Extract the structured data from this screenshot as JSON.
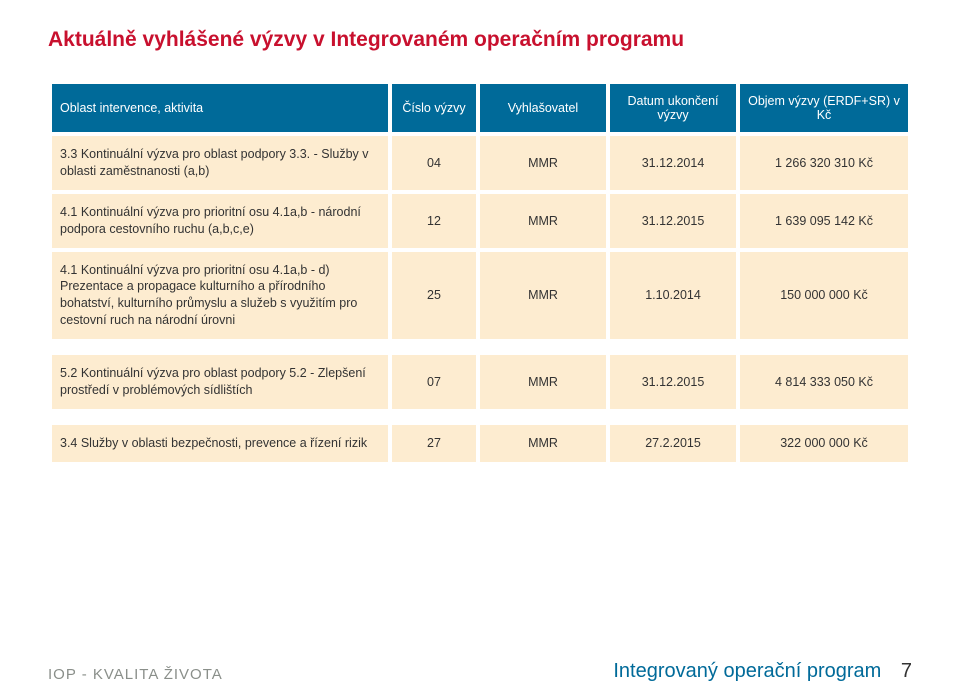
{
  "title": "Aktuálně vyhlášené výzvy v Integrovaném operačním programu",
  "headers": {
    "c1": "Oblast intervence, aktivita",
    "c2": "Číslo výzvy",
    "c3": "Vyhlašovatel",
    "c4": "Datum ukončení výzvy",
    "c5": "Objem výzvy (ERDF+SR) v Kč"
  },
  "rows": [
    {
      "c1": "3.3 Kontinuální výzva pro oblast podpory 3.3. - Služby v oblasti zaměstnanosti (a,b)",
      "c2": "04",
      "c3": "MMR",
      "c4": "31.12.2014",
      "c5": "1 266 320 310 Kč"
    },
    {
      "c1": "4.1 Kontinuální výzva pro prioritní osu 4.1a,b - národní podpora cestovního ruchu (a,b,c,e)",
      "c2": "12",
      "c3": "MMR",
      "c4": "31.12.2015",
      "c5": "1 639 095 142 Kč"
    },
    {
      "c1": "4.1 Kontinuální výzva pro prioritní osu 4.1a,b - d) Prezentace a propagace kulturního a přírodního bohatství, kulturního průmyslu a služeb s využitím pro cestovní ruch na národní úrovni",
      "c2": "25",
      "c3": "MMR",
      "c4": "1.10.2014",
      "c5": "150 000 000 Kč"
    },
    {
      "c1": "5.2 Kontinuální výzva pro oblast podpory 5.2 - Zlepšení prostředí v problémových sídlištích",
      "c2": "07",
      "c3": "MMR",
      "c4": "31.12.2015",
      "c5": "4 814 333 050 Kč"
    },
    {
      "c1": "3.4 Služby v oblasti bezpečnosti, prevence a řízení rizik",
      "c2": "27",
      "c3": "MMR",
      "c4": "27.2.2015",
      "c5": "322 000 000 Kč"
    }
  ],
  "footer": {
    "left": "IOP - KVALITA ŽIVOTA",
    "program": "Integrovaný operační program",
    "page": "7"
  },
  "colors": {
    "accent_red": "#c8102e",
    "header_blue": "#006a99",
    "cell_cream": "#fdecd0",
    "footer_grey": "#8a8f8a"
  }
}
